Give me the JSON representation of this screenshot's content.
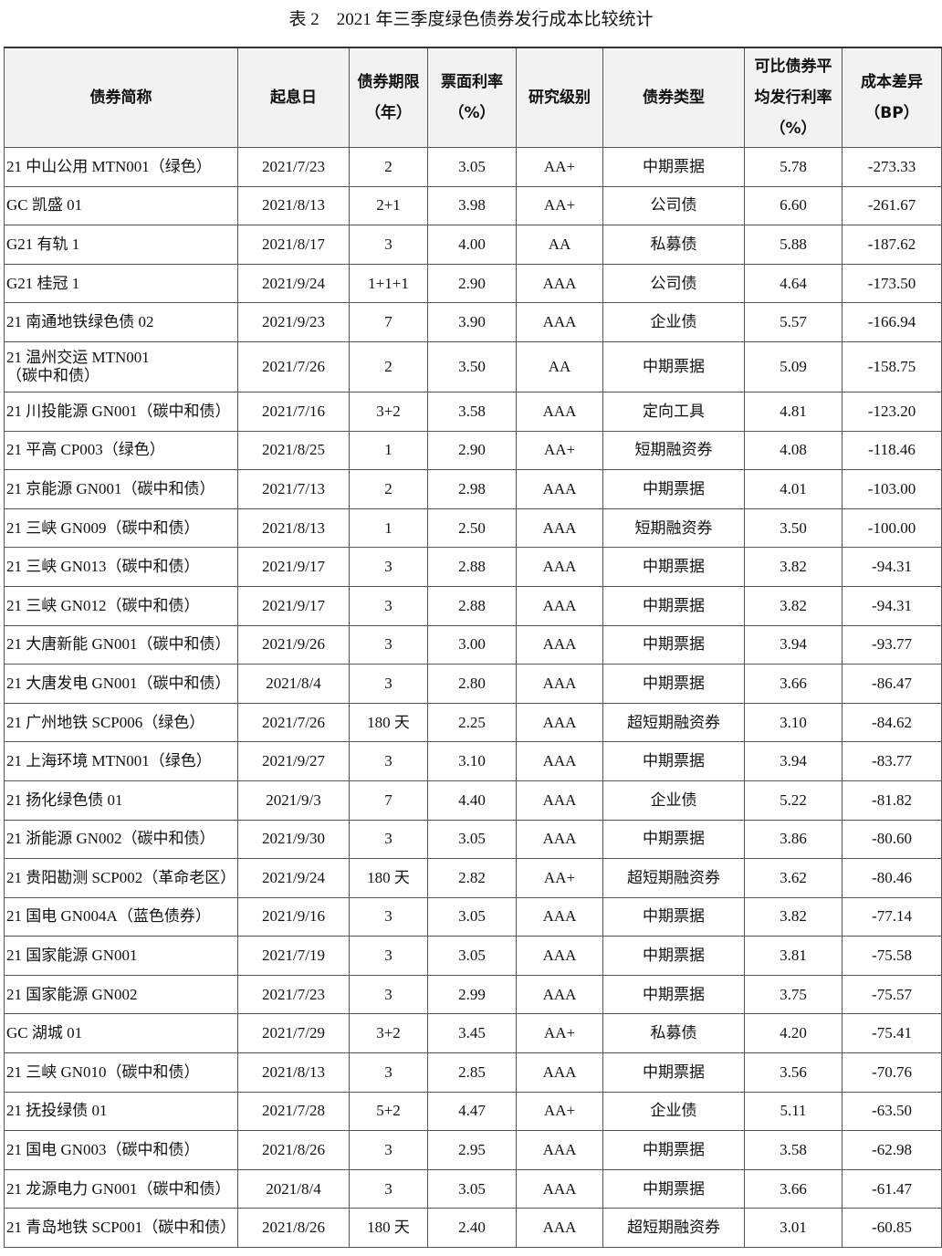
{
  "title": "表 2　2021 年三季度绿色债券发行成本比较统计",
  "table": {
    "headers": [
      "债券简称",
      "起息日",
      "债券期限\n（年）",
      "票面利率\n（%）",
      "研究级别",
      "债券类型",
      "可比债券平\n均发行利率\n（%）",
      "成本差异\n（BP）"
    ],
    "rows": [
      [
        "21 中山公用 MTN001（绿色）",
        "2021/7/23",
        "2",
        "3.05",
        "AA+",
        "中期票据",
        "5.78",
        "-273.33"
      ],
      [
        "GC 凯盛 01",
        "2021/8/13",
        "2+1",
        "3.98",
        "AA+",
        "公司债",
        "6.60",
        "-261.67"
      ],
      [
        "G21 有轨 1",
        "2021/8/17",
        "3",
        "4.00",
        "AA",
        "私募债",
        "5.88",
        "-187.62"
      ],
      [
        "G21 桂冠 1",
        "2021/9/24",
        "1+1+1",
        "2.90",
        "AAA",
        "公司债",
        "4.64",
        "-173.50"
      ],
      [
        "21 南通地铁绿色债 02",
        "2021/9/23",
        "7",
        "3.90",
        "AAA",
        "企业债",
        "5.57",
        "-166.94"
      ],
      [
        "21 温州交运 MTN001\n（碳中和债）",
        "2021/7/26",
        "2",
        "3.50",
        "AA",
        "中期票据",
        "5.09",
        "-158.75"
      ],
      [
        "21 川投能源 GN001（碳中和债）",
        "2021/7/16",
        "3+2",
        "3.58",
        "AAA",
        "定向工具",
        "4.81",
        "-123.20"
      ],
      [
        "21 平高 CP003（绿色）",
        "2021/8/25",
        "1",
        "2.90",
        "AA+",
        "短期融资券",
        "4.08",
        "-118.46"
      ],
      [
        "21 京能源 GN001（碳中和债）",
        "2021/7/13",
        "2",
        "2.98",
        "AAA",
        "中期票据",
        "4.01",
        "-103.00"
      ],
      [
        "21 三峡 GN009（碳中和债）",
        "2021/8/13",
        "1",
        "2.50",
        "AAA",
        "短期融资券",
        "3.50",
        "-100.00"
      ],
      [
        "21 三峡 GN013（碳中和债）",
        "2021/9/17",
        "3",
        "2.88",
        "AAA",
        "中期票据",
        "3.82",
        "-94.31"
      ],
      [
        "21 三峡 GN012（碳中和债）",
        "2021/9/17",
        "3",
        "2.88",
        "AAA",
        "中期票据",
        "3.82",
        "-94.31"
      ],
      [
        "21 大唐新能 GN001（碳中和债）",
        "2021/9/26",
        "3",
        "3.00",
        "AAA",
        "中期票据",
        "3.94",
        "-93.77"
      ],
      [
        "21 大唐发电 GN001（碳中和债）",
        "2021/8/4",
        "3",
        "2.80",
        "AAA",
        "中期票据",
        "3.66",
        "-86.47"
      ],
      [
        "21 广州地铁 SCP006（绿色）",
        "2021/7/26",
        "180 天",
        "2.25",
        "AAA",
        "超短期融资券",
        "3.10",
        "-84.62"
      ],
      [
        "21 上海环境 MTN001（绿色）",
        "2021/9/27",
        "3",
        "3.10",
        "AAA",
        "中期票据",
        "3.94",
        "-83.77"
      ],
      [
        "21 扬化绿色债 01",
        "2021/9/3",
        "7",
        "4.40",
        "AAA",
        "企业债",
        "5.22",
        "-81.82"
      ],
      [
        "21 浙能源 GN002（碳中和债）",
        "2021/9/30",
        "3",
        "3.05",
        "AAA",
        "中期票据",
        "3.86",
        "-80.60"
      ],
      [
        "21 贵阳勘测 SCP002（革命老区）",
        "2021/9/24",
        "180 天",
        "2.82",
        "AA+",
        "超短期融资券",
        "3.62",
        "-80.46"
      ],
      [
        "21 国电 GN004A（蓝色债券）",
        "2021/9/16",
        "3",
        "3.05",
        "AAA",
        "中期票据",
        "3.82",
        "-77.14"
      ],
      [
        "21 国家能源 GN001",
        "2021/7/19",
        "3",
        "3.05",
        "AAA",
        "中期票据",
        "3.81",
        "-75.58"
      ],
      [
        "21 国家能源 GN002",
        "2021/7/23",
        "3",
        "2.99",
        "AAA",
        "中期票据",
        "3.75",
        "-75.57"
      ],
      [
        "GC 湖城 01",
        "2021/7/29",
        "3+2",
        "3.45",
        "AA+",
        "私募债",
        "4.20",
        "-75.41"
      ],
      [
        "21 三峡 GN010（碳中和债）",
        "2021/8/13",
        "3",
        "2.85",
        "AAA",
        "中期票据",
        "3.56",
        "-70.76"
      ],
      [
        "21 抚投绿债 01",
        "2021/7/28",
        "5+2",
        "4.47",
        "AA+",
        "企业债",
        "5.11",
        "-63.50"
      ],
      [
        "21 国电 GN003（碳中和债）",
        "2021/8/26",
        "3",
        "2.95",
        "AAA",
        "中期票据",
        "3.58",
        "-62.98"
      ],
      [
        "21 龙源电力 GN001（碳中和债）",
        "2021/8/4",
        "3",
        "3.05",
        "AAA",
        "中期票据",
        "3.66",
        "-61.47"
      ],
      [
        "21 青岛地铁 SCP001（碳中和债）",
        "2021/8/26",
        "180 天",
        "2.40",
        "AAA",
        "超短期融资券",
        "3.01",
        "-60.85"
      ]
    ]
  }
}
